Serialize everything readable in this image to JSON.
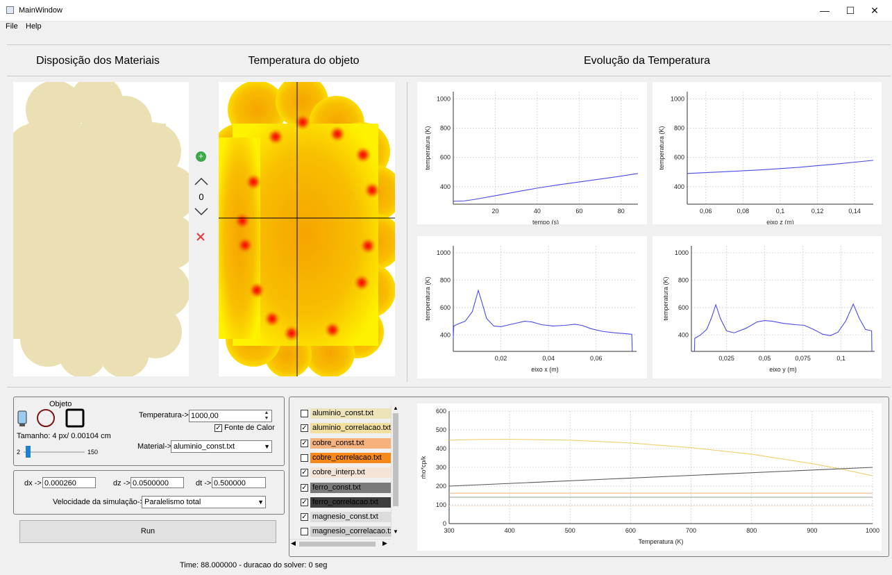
{
  "window": {
    "title": "MainWindow",
    "minimize": "—",
    "maximize": "☐",
    "close": "✕"
  },
  "menu": {
    "file": "File",
    "help": "Help"
  },
  "sections": {
    "materials": "Disposição dos Materiais",
    "object_temp": "Temperatura do objeto",
    "evolution": "Evolução da Temperatura"
  },
  "layer": {
    "add_icon": "add-icon",
    "up_icon": "chevron-up-icon",
    "value": "0",
    "down_icon": "chevron-down-icon",
    "remove_icon": "close-icon"
  },
  "colors": {
    "material": "#ebe0b3",
    "plot_line": "#4a4ae8",
    "add": "#3ba84a",
    "remove": "#e03b3b"
  },
  "object": {
    "group_title": "Objeto",
    "size_label": "Tamanho: 4 px/ 0.00104 cm",
    "slider_min": "2",
    "slider_max": "150",
    "slider_value": 4,
    "temp_label": "Temperatura->",
    "temp_value": "1000,00",
    "heat_source_label": "Fonte de Calor",
    "heat_source_checked": true,
    "material_label": "Material->",
    "material_value": "aluminio_const.txt"
  },
  "solver": {
    "dx_label": "dx ->",
    "dx_value": "0.000260",
    "dz_label": "dz ->",
    "dz_value": "0.0500000",
    "dt_label": "dt ->",
    "dt_value": "0.500000",
    "speed_label": "Velocidade da simulação->",
    "speed_value": "Paralelismo total",
    "run_label": "Run"
  },
  "materials_list": [
    {
      "label": "aluminio_const.txt",
      "checked": false,
      "color": "#ede3b9",
      "text_color": "#000"
    },
    {
      "label": "aluminio_correlacao.txt",
      "checked": true,
      "color": "#f3e0a0",
      "text_color": "#000"
    },
    {
      "label": "cobre_const.txt",
      "checked": true,
      "color": "#f5b27c",
      "text_color": "#000"
    },
    {
      "label": "cobre_correlacao.txt",
      "checked": false,
      "color": "#f5891c",
      "text_color": "#000"
    },
    {
      "label": "cobre_interp.txt",
      "checked": true,
      "color": "#f6e4d7",
      "text_color": "#000"
    },
    {
      "label": "ferro_const.txt",
      "checked": true,
      "color": "#7a7a7a",
      "text_color": "#000"
    },
    {
      "label": "ferro_correlacao.txt",
      "checked": true,
      "color": "#3c3c3c",
      "text_color": "#000"
    },
    {
      "label": "magnesio_const.txt",
      "checked": true,
      "color": "#dcdcdc",
      "text_color": "#000"
    },
    {
      "label": "magnesio_correlacao.txt",
      "checked": false,
      "color": "#cfcfcf",
      "text_color": "#000"
    }
  ],
  "status": {
    "text": "Time: 88.000000 - duracao do solver: 0 seg"
  },
  "chart_data": [
    {
      "type": "line",
      "xlabel": "tempo (s)",
      "ylabel": "temperatura (K)",
      "xticks": [
        "20",
        "40",
        "60",
        "80"
      ],
      "yticks": [
        "400",
        "600",
        "800",
        "1000"
      ],
      "xlim": [
        0,
        88
      ],
      "ylim": [
        280,
        1050
      ],
      "series": [
        {
          "x": [
            0,
            5,
            10,
            20,
            30,
            40,
            50,
            60,
            70,
            80,
            88
          ],
          "y": [
            300,
            302,
            312,
            338,
            364,
            390,
            412,
            432,
            452,
            472,
            490
          ]
        }
      ]
    },
    {
      "type": "line",
      "xlabel": "eixo z (m)",
      "ylabel": "temperatura (K)",
      "xticks": [
        "0,06",
        "0,08",
        "0,1",
        "0,12",
        "0,14"
      ],
      "yticks": [
        "400",
        "600",
        "800",
        "1000"
      ],
      "xlim": [
        0.05,
        0.15
      ],
      "ylim": [
        280,
        1050
      ],
      "series": [
        {
          "x": [
            0.05,
            0.07,
            0.09,
            0.11,
            0.13,
            0.15
          ],
          "y": [
            490,
            502,
            515,
            532,
            555,
            580
          ]
        }
      ]
    },
    {
      "type": "line",
      "xlabel": "eixo x (m)",
      "ylabel": "temperatura (K)",
      "xticks": [
        "0,02",
        "0,04",
        "0,06"
      ],
      "yticks": [
        "400",
        "600",
        "800",
        "1000"
      ],
      "xlim": [
        0,
        0.077
      ],
      "ylim": [
        280,
        1050
      ],
      "series": [
        {
          "x": [
            0,
            0.0002,
            0.002,
            0.005,
            0.008,
            0.0105,
            0.012,
            0.014,
            0.017,
            0.02,
            0.025,
            0.03,
            0.033,
            0.037,
            0.042,
            0.047,
            0.051,
            0.054,
            0.058,
            0.063,
            0.068,
            0.073,
            0.075,
            0.0752
          ],
          "y": [
            380,
            465,
            480,
            500,
            570,
            725,
            640,
            520,
            465,
            460,
            480,
            500,
            495,
            475,
            465,
            470,
            478,
            470,
            445,
            425,
            415,
            408,
            405,
            280
          ]
        }
      ]
    },
    {
      "type": "line",
      "xlabel": "eixo y (m)",
      "ylabel": "temperatura (K)",
      "xticks": [
        "0,025",
        "0,05",
        "0,075",
        "0,1"
      ],
      "yticks": [
        "400",
        "600",
        "800",
        "1000"
      ],
      "xlim": [
        0.002,
        0.122
      ],
      "ylim": [
        280,
        1050
      ],
      "series": [
        {
          "x": [
            0.004,
            0.0042,
            0.008,
            0.012,
            0.015,
            0.018,
            0.021,
            0.025,
            0.03,
            0.038,
            0.045,
            0.05,
            0.055,
            0.062,
            0.07,
            0.076,
            0.082,
            0.088,
            0.093,
            0.098,
            0.103,
            0.108,
            0.112,
            0.116,
            0.12,
            0.1202
          ],
          "y": [
            280,
            375,
            400,
            440,
            520,
            620,
            520,
            430,
            415,
            450,
            495,
            505,
            500,
            485,
            475,
            470,
            440,
            405,
            395,
            420,
            500,
            625,
            520,
            440,
            430,
            280
          ]
        }
      ]
    },
    {
      "type": "line",
      "xlabel": "Temperatura (K)",
      "ylabel": "rho*cp/k",
      "xticks": [
        "300",
        "400",
        "500",
        "600",
        "700",
        "800",
        "900",
        "1000"
      ],
      "yticks": [
        "0",
        "100",
        "200",
        "300",
        "400",
        "500",
        "600"
      ],
      "xlim": [
        300,
        1000
      ],
      "ylim": [
        0,
        600
      ],
      "series": [
        {
          "color": "#f0d070",
          "x": [
            300,
            350,
            400,
            500,
            600,
            700,
            800,
            900,
            950,
            1000
          ],
          "y": [
            445,
            449,
            450,
            445,
            430,
            405,
            370,
            320,
            290,
            255
          ]
        },
        {
          "color": "#555555",
          "x": [
            300,
            1000
          ],
          "y": [
            200,
            300
          ]
        },
        {
          "color": "#f5b27c",
          "x": [
            300,
            1000
          ],
          "y": [
            162,
            162
          ]
        },
        {
          "color": "#9aa89a",
          "x": [
            300,
            1000
          ],
          "y": [
            141,
            141
          ]
        },
        {
          "color": "#f6e4d7",
          "x": [
            300,
            1000
          ],
          "y": [
            95,
            95
          ]
        }
      ]
    }
  ]
}
